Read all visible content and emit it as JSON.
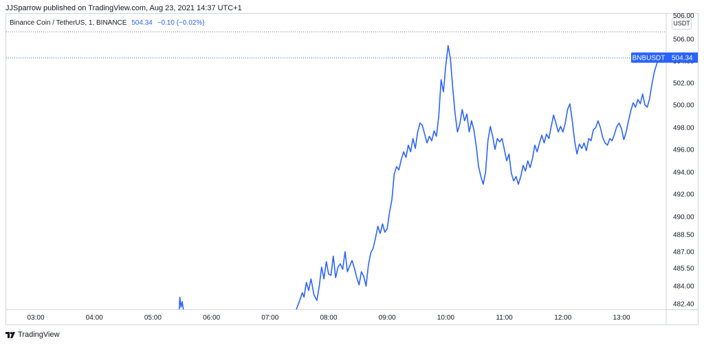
{
  "header": {
    "publisher": "JJSparrow published on TradingView.com, Aug 23, 2021 14:37 UTC+1"
  },
  "legend": {
    "symbol": "Binance Coin / TetherUS, 1, BINANCE",
    "price": "504.34",
    "change": "−0.10 (−0.02%)"
  },
  "axis": {
    "currency": "USDT",
    "cut_top_label": "506.00"
  },
  "price_tag": {
    "ticker": "BNBUSDT",
    "value": "504.34"
  },
  "footer": {
    "brand": "TradingView"
  },
  "colors": {
    "line": "#2962ff",
    "grid": "#e0e3eb",
    "border": "#d1d4dc",
    "text": "#131722"
  },
  "chart_data": {
    "type": "line",
    "title": "Binance Coin / TetherUS, 1, BINANCE",
    "xlabel": "",
    "ylabel": "",
    "grid": false,
    "legend_position": "top-left",
    "x_ticks": [
      "03:00",
      "04:00",
      "05:00",
      "06:00",
      "07:00",
      "08:00",
      "09:00",
      "10:00",
      "11:00",
      "12:00",
      "13:00"
    ],
    "y_ticks": [
      482.4,
      484.0,
      485.5,
      487.0,
      488.5,
      490.0,
      492.0,
      494.0,
      496.0,
      498.0,
      500.0,
      502.0,
      504.0,
      506.0
    ],
    "y_tick_labels": [
      "482.40",
      "484.00",
      "485.50",
      "487.00",
      "488.50",
      "490.00",
      "492.00",
      "494.00",
      "496.00",
      "498.00",
      "500.00",
      "502.00",
      "504.00",
      "506.00"
    ],
    "x_unit": "hours",
    "ylim": [
      481.6,
      507.0
    ],
    "series": [
      {
        "values": [
          [
            5.45,
            481.9
          ],
          [
            5.46,
            483.0
          ],
          [
            5.48,
            482.1
          ],
          [
            5.5,
            482.6
          ],
          [
            5.52,
            481.8
          ],
          [
            7.45,
            481.8
          ],
          [
            7.5,
            482.6
          ],
          [
            7.55,
            483.4
          ],
          [
            7.58,
            483.0
          ],
          [
            7.62,
            484.3
          ],
          [
            7.66,
            483.6
          ],
          [
            7.7,
            484.6
          ],
          [
            7.75,
            483.2
          ],
          [
            7.8,
            482.7
          ],
          [
            7.84,
            484.0
          ],
          [
            7.88,
            485.6
          ],
          [
            7.92,
            484.6
          ],
          [
            7.96,
            486.1
          ],
          [
            8.0,
            485.0
          ],
          [
            8.04,
            484.9
          ],
          [
            8.08,
            486.6
          ],
          [
            8.12,
            484.7
          ],
          [
            8.16,
            485.6
          ],
          [
            8.2,
            485.9
          ],
          [
            8.24,
            485.4
          ],
          [
            8.28,
            487.0
          ],
          [
            8.32,
            485.2
          ],
          [
            8.36,
            485.7
          ],
          [
            8.4,
            486.2
          ],
          [
            8.44,
            485.5
          ],
          [
            8.48,
            484.7
          ],
          [
            8.52,
            484.1
          ],
          [
            8.56,
            485.2
          ],
          [
            8.6,
            484.8
          ],
          [
            8.64,
            484.0
          ],
          [
            8.68,
            485.8
          ],
          [
            8.72,
            486.9
          ],
          [
            8.76,
            487.3
          ],
          [
            8.8,
            488.2
          ],
          [
            8.84,
            489.2
          ],
          [
            8.88,
            488.6
          ],
          [
            8.92,
            489.4
          ],
          [
            8.96,
            488.7
          ],
          [
            9.0,
            489.0
          ],
          [
            9.04,
            490.4
          ],
          [
            9.08,
            491.5
          ],
          [
            9.12,
            493.8
          ],
          [
            9.16,
            494.5
          ],
          [
            9.2,
            494.2
          ],
          [
            9.24,
            495.1
          ],
          [
            9.28,
            495.8
          ],
          [
            9.32,
            495.3
          ],
          [
            9.36,
            496.4
          ],
          [
            9.4,
            495.8
          ],
          [
            9.44,
            497.0
          ],
          [
            9.48,
            496.1
          ],
          [
            9.52,
            497.6
          ],
          [
            9.56,
            498.4
          ],
          [
            9.6,
            498.2
          ],
          [
            9.64,
            497.4
          ],
          [
            9.68,
            496.6
          ],
          [
            9.72,
            497.2
          ],
          [
            9.76,
            496.8
          ],
          [
            9.8,
            497.7
          ],
          [
            9.84,
            497.2
          ],
          [
            9.88,
            499.0
          ],
          [
            9.92,
            502.3
          ],
          [
            9.96,
            501.2
          ],
          [
            10.0,
            503.6
          ],
          [
            10.04,
            505.4
          ],
          [
            10.08,
            504.2
          ],
          [
            10.12,
            501.5
          ],
          [
            10.16,
            499.2
          ],
          [
            10.2,
            497.6
          ],
          [
            10.24,
            498.3
          ],
          [
            10.28,
            499.6
          ],
          [
            10.32,
            498.6
          ],
          [
            10.36,
            499.2
          ],
          [
            10.4,
            497.6
          ],
          [
            10.44,
            498.6
          ],
          [
            10.48,
            497.8
          ],
          [
            10.52,
            496.3
          ],
          [
            10.56,
            494.5
          ],
          [
            10.6,
            493.6
          ],
          [
            10.64,
            492.9
          ],
          [
            10.68,
            494.0
          ],
          [
            10.72,
            496.8
          ],
          [
            10.76,
            498.1
          ],
          [
            10.8,
            497.2
          ],
          [
            10.84,
            496.0
          ],
          [
            10.88,
            497.0
          ],
          [
            10.92,
            496.7
          ],
          [
            10.96,
            497.0
          ],
          [
            11.0,
            496.0
          ],
          [
            11.04,
            495.0
          ],
          [
            11.08,
            495.6
          ],
          [
            11.12,
            493.9
          ],
          [
            11.16,
            493.2
          ],
          [
            11.2,
            493.6
          ],
          [
            11.24,
            492.9
          ],
          [
            11.28,
            493.6
          ],
          [
            11.32,
            494.6
          ],
          [
            11.36,
            494.1
          ],
          [
            11.4,
            495.0
          ],
          [
            11.44,
            494.4
          ],
          [
            11.48,
            495.2
          ],
          [
            11.52,
            496.4
          ],
          [
            11.56,
            495.8
          ],
          [
            11.6,
            496.6
          ],
          [
            11.64,
            497.3
          ],
          [
            11.68,
            496.6
          ],
          [
            11.72,
            497.4
          ],
          [
            11.76,
            497.0
          ],
          [
            11.8,
            498.1
          ],
          [
            11.84,
            499.1
          ],
          [
            11.88,
            498.4
          ],
          [
            11.92,
            497.6
          ],
          [
            11.96,
            498.1
          ],
          [
            12.0,
            497.6
          ],
          [
            12.04,
            498.4
          ],
          [
            12.08,
            499.6
          ],
          [
            12.12,
            500.1
          ],
          [
            12.16,
            498.6
          ],
          [
            12.2,
            496.8
          ],
          [
            12.24,
            495.6
          ],
          [
            12.28,
            496.5
          ],
          [
            12.32,
            496.1
          ],
          [
            12.36,
            496.6
          ],
          [
            12.4,
            495.9
          ],
          [
            12.44,
            497.0
          ],
          [
            12.48,
            496.8
          ],
          [
            12.52,
            497.8
          ],
          [
            12.56,
            498.0
          ],
          [
            12.6,
            498.6
          ],
          [
            12.64,
            498.0
          ],
          [
            12.68,
            497.1
          ],
          [
            12.72,
            496.6
          ],
          [
            12.76,
            496.4
          ],
          [
            12.8,
            497.0
          ],
          [
            12.84,
            496.8
          ],
          [
            12.88,
            497.4
          ],
          [
            12.92,
            498.1
          ],
          [
            12.96,
            498.4
          ],
          [
            13.0,
            497.9
          ],
          [
            13.04,
            496.9
          ],
          [
            13.08,
            497.6
          ],
          [
            13.12,
            498.6
          ],
          [
            13.16,
            499.5
          ],
          [
            13.2,
            500.2
          ],
          [
            13.24,
            499.8
          ],
          [
            13.28,
            500.5
          ],
          [
            13.32,
            500.1
          ],
          [
            13.36,
            501.0
          ],
          [
            13.4,
            500.0
          ],
          [
            13.44,
            499.8
          ],
          [
            13.48,
            500.6
          ],
          [
            13.52,
            501.9
          ],
          [
            13.56,
            503.0
          ],
          [
            13.6,
            503.7
          ],
          [
            13.64,
            504.34
          ]
        ]
      }
    ]
  }
}
